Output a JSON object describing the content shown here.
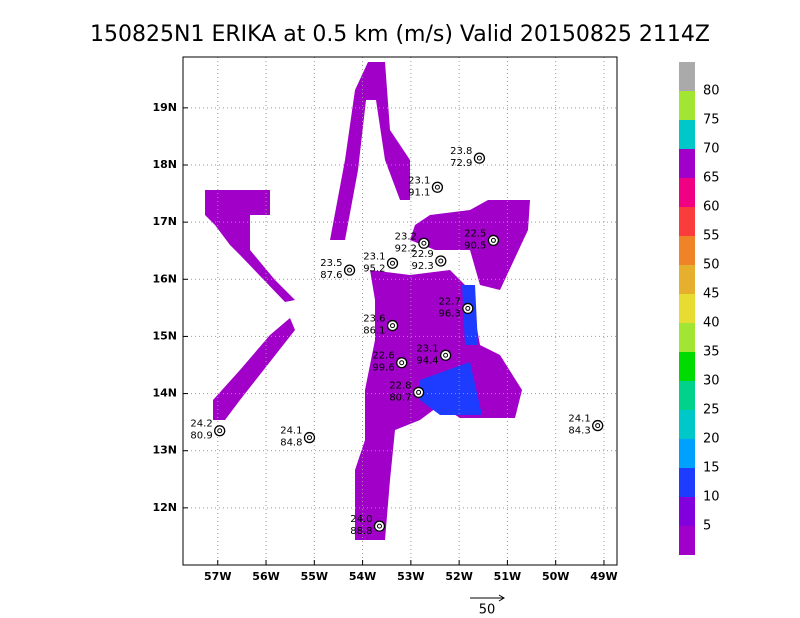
{
  "chart_data": {
    "type": "map",
    "title": "150825N1 ERIKA at 0.5 km (m/s) Valid 20150825 2114Z",
    "xlim": [
      -57.72,
      -48.73
    ],
    "ylim": [
      11.0,
      19.89
    ],
    "xticks": [
      {
        "value": -57,
        "label": "57W"
      },
      {
        "value": -56,
        "label": "56W"
      },
      {
        "value": -55,
        "label": "55W"
      },
      {
        "value": -54,
        "label": "54W"
      },
      {
        "value": -53,
        "label": "53W"
      },
      {
        "value": -52,
        "label": "52W"
      },
      {
        "value": -51,
        "label": "51W"
      },
      {
        "value": -50,
        "label": "50W"
      },
      {
        "value": -49,
        "label": "49W"
      }
    ],
    "yticks": [
      {
        "value": 12,
        "label": "12N"
      },
      {
        "value": 13,
        "label": "13N"
      },
      {
        "value": 14,
        "label": "14N"
      },
      {
        "value": 15,
        "label": "15N"
      },
      {
        "value": 16,
        "label": "16N"
      },
      {
        "value": 17,
        "label": "17N"
      },
      {
        "value": 18,
        "label": "18N"
      },
      {
        "value": 19,
        "label": "19N"
      }
    ],
    "grid": true,
    "colorbar": {
      "clim": [
        0,
        85
      ],
      "levels": [
        5,
        10,
        15,
        20,
        25,
        30,
        35,
        40,
        45,
        50,
        55,
        60,
        65,
        70,
        75,
        80
      ],
      "colors": [
        "#a000c8",
        "#8200dc",
        "#1e3cff",
        "#00a0ff",
        "#00c8c8",
        "#00d28c",
        "#00dc00",
        "#a0e632",
        "#e6dc32",
        "#e6af2d",
        "#f08228",
        "#fa3c3c",
        "#f00082",
        "#a000c8",
        "#00c8c8",
        "#a0e632",
        "#aaaaaa"
      ]
    },
    "stations": [
      {
        "lon": -51.58,
        "lat": 18.12,
        "label1": "23.8",
        "label2": "72.9"
      },
      {
        "lon": -52.45,
        "lat": 17.61,
        "label1": "23.1",
        "label2": "91.1"
      },
      {
        "lon": -52.73,
        "lat": 16.63,
        "label1": "23.2",
        "label2": "92.2"
      },
      {
        "lon": -51.29,
        "lat": 16.68,
        "label1": "22.5",
        "label2": "90.5"
      },
      {
        "lon": -53.38,
        "lat": 16.28,
        "label1": "23.1",
        "label2": "95.2"
      },
      {
        "lon": -54.27,
        "lat": 16.16,
        "label1": "23.5",
        "label2": "87.6"
      },
      {
        "lon": -52.38,
        "lat": 16.32,
        "label1": "22.9",
        "label2": "92.3"
      },
      {
        "lon": -51.82,
        "lat": 15.49,
        "label1": "22.7",
        "label2": "96.3"
      },
      {
        "lon": -53.38,
        "lat": 15.19,
        "label1": "23.6",
        "label2": "86.1"
      },
      {
        "lon": -53.19,
        "lat": 14.54,
        "label1": "22.6",
        "label2": "99.6"
      },
      {
        "lon": -52.28,
        "lat": 14.67,
        "label1": "23.1",
        "label2": "94.4"
      },
      {
        "lon": -52.84,
        "lat": 14.02,
        "label1": "22.8",
        "label2": "80.7"
      },
      {
        "lon": -56.96,
        "lat": 13.35,
        "label1": "24.2",
        "label2": "80.9"
      },
      {
        "lon": -55.1,
        "lat": 13.23,
        "label1": "24.1",
        "label2": "84.8"
      },
      {
        "lon": -49.13,
        "lat": 13.44,
        "label1": "24.1",
        "label2": "84.3"
      },
      {
        "lon": -53.65,
        "lat": 11.68,
        "label1": "24.0",
        "label2": "88.8"
      }
    ],
    "vector_scale_label": "50"
  }
}
